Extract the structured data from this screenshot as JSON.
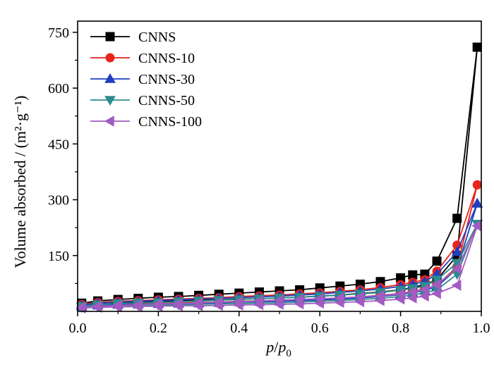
{
  "chart_data": {
    "type": "line",
    "title": "",
    "xlabel": "p/p0",
    "ylabel": "Volume absorbed / (m²·g⁻¹)",
    "xlim": [
      0.0,
      1.0
    ],
    "ylim": [
      0,
      780
    ],
    "xticks": [
      "0.0",
      "0.2",
      "0.4",
      "0.6",
      "0.8",
      "1.0"
    ],
    "yticks": [
      "150",
      "300",
      "450",
      "600",
      "750"
    ],
    "grid": false,
    "legend_position": "top-left",
    "series": [
      {
        "name": "CNNS",
        "color": "#000000",
        "marker": "square",
        "adsorption": {
          "x": [
            0.01,
            0.05,
            0.1,
            0.15,
            0.2,
            0.25,
            0.3,
            0.35,
            0.4,
            0.45,
            0.5,
            0.55,
            0.6,
            0.65,
            0.7,
            0.75,
            0.8,
            0.83,
            0.86,
            0.89,
            0.94,
            0.99
          ],
          "y": [
            18,
            22,
            24,
            26,
            27,
            28,
            30,
            31,
            33,
            34,
            36,
            38,
            41,
            44,
            48,
            52,
            58,
            64,
            72,
            85,
            150,
            710
          ]
        },
        "desorption": {
          "x": [
            0.99,
            0.94,
            0.89,
            0.86,
            0.83,
            0.8,
            0.75,
            0.7,
            0.65,
            0.6,
            0.55,
            0.5,
            0.45,
            0.4,
            0.35,
            0.3,
            0.25,
            0.2,
            0.15,
            0.1,
            0.05,
            0.01
          ],
          "y": [
            710,
            250,
            135,
            100,
            98,
            90,
            80,
            73,
            68,
            63,
            58,
            55,
            52,
            49,
            46,
            43,
            40,
            38,
            35,
            32,
            28,
            22
          ]
        }
      },
      {
        "name": "CNNS-10",
        "color": "#e8241a",
        "marker": "circle",
        "adsorption": {
          "x": [
            0.01,
            0.05,
            0.1,
            0.15,
            0.2,
            0.25,
            0.3,
            0.35,
            0.4,
            0.45,
            0.5,
            0.55,
            0.6,
            0.65,
            0.7,
            0.75,
            0.8,
            0.83,
            0.86,
            0.89,
            0.94,
            0.99
          ],
          "y": [
            15,
            18,
            20,
            21,
            22,
            23,
            24,
            25,
            27,
            28,
            30,
            31,
            33,
            36,
            39,
            43,
            48,
            53,
            60,
            70,
            120,
            340
          ]
        },
        "desorption": {
          "x": [
            0.99,
            0.94,
            0.89,
            0.86,
            0.83,
            0.8,
            0.75,
            0.7,
            0.65,
            0.6,
            0.55,
            0.5,
            0.45,
            0.4,
            0.35,
            0.3,
            0.25,
            0.2,
            0.15,
            0.1,
            0.05,
            0.01
          ],
          "y": [
            340,
            178,
            108,
            85,
            78,
            72,
            64,
            58,
            54,
            50,
            47,
            44,
            42,
            40,
            37,
            35,
            33,
            31,
            29,
            27,
            24,
            19
          ]
        }
      },
      {
        "name": "CNNS-30",
        "color": "#1f3fbf",
        "marker": "triangle-up",
        "adsorption": {
          "x": [
            0.01,
            0.05,
            0.1,
            0.15,
            0.2,
            0.25,
            0.3,
            0.35,
            0.4,
            0.45,
            0.5,
            0.55,
            0.6,
            0.65,
            0.7,
            0.75,
            0.8,
            0.83,
            0.86,
            0.89,
            0.94,
            0.99
          ],
          "y": [
            13,
            16,
            18,
            19,
            20,
            21,
            22,
            23,
            25,
            26,
            27,
            29,
            31,
            33,
            36,
            40,
            45,
            50,
            56,
            66,
            115,
            290
          ]
        },
        "desorption": {
          "x": [
            0.99,
            0.94,
            0.89,
            0.86,
            0.83,
            0.8,
            0.75,
            0.7,
            0.65,
            0.6,
            0.55,
            0.5,
            0.45,
            0.4,
            0.35,
            0.3,
            0.25,
            0.2,
            0.15,
            0.1,
            0.05,
            0.01
          ],
          "y": [
            290,
            160,
            100,
            80,
            73,
            67,
            60,
            55,
            51,
            47,
            44,
            41,
            39,
            37,
            35,
            33,
            31,
            29,
            27,
            25,
            22,
            17
          ]
        }
      },
      {
        "name": "CNNS-50",
        "color": "#2e8b8b",
        "marker": "triangle-down",
        "adsorption": {
          "x": [
            0.01,
            0.05,
            0.1,
            0.15,
            0.2,
            0.25,
            0.3,
            0.35,
            0.4,
            0.45,
            0.5,
            0.55,
            0.6,
            0.65,
            0.7,
            0.75,
            0.8,
            0.83,
            0.86,
            0.89,
            0.94,
            0.99
          ],
          "y": [
            11,
            13,
            15,
            16,
            17,
            18,
            19,
            20,
            21,
            22,
            23,
            25,
            27,
            29,
            32,
            35,
            40,
            44,
            50,
            58,
            100,
            235
          ]
        },
        "desorption": {
          "x": [
            0.99,
            0.94,
            0.89,
            0.86,
            0.83,
            0.8,
            0.75,
            0.7,
            0.65,
            0.6,
            0.55,
            0.5,
            0.45,
            0.4,
            0.35,
            0.3,
            0.25,
            0.2,
            0.15,
            0.1,
            0.05,
            0.01
          ],
          "y": [
            235,
            130,
            85,
            68,
            62,
            57,
            51,
            47,
            44,
            41,
            38,
            36,
            34,
            32,
            30,
            28,
            26,
            24,
            23,
            21,
            18,
            14
          ]
        }
      },
      {
        "name": "CNNS-100",
        "color": "#a35bc2",
        "marker": "triangle-left",
        "adsorption": {
          "x": [
            0.01,
            0.05,
            0.1,
            0.15,
            0.2,
            0.25,
            0.3,
            0.35,
            0.4,
            0.45,
            0.5,
            0.55,
            0.6,
            0.65,
            0.7,
            0.75,
            0.8,
            0.83,
            0.86,
            0.89,
            0.94,
            0.99
          ],
          "y": [
            9,
            11,
            12,
            13,
            14,
            15,
            15,
            16,
            17,
            18,
            19,
            20,
            22,
            24,
            26,
            29,
            33,
            36,
            41,
            48,
            70,
            230
          ]
        },
        "desorption": {
          "x": [
            0.99,
            0.94,
            0.89,
            0.86,
            0.83,
            0.8,
            0.75,
            0.7,
            0.65,
            0.6,
            0.55,
            0.5,
            0.45,
            0.4,
            0.35,
            0.3,
            0.25,
            0.2,
            0.15,
            0.1,
            0.05,
            0.01
          ],
          "y": [
            230,
            115,
            72,
            58,
            52,
            47,
            42,
            39,
            36,
            34,
            32,
            30,
            28,
            26,
            25,
            23,
            21,
            20,
            18,
            16,
            14,
            11
          ]
        }
      }
    ]
  }
}
